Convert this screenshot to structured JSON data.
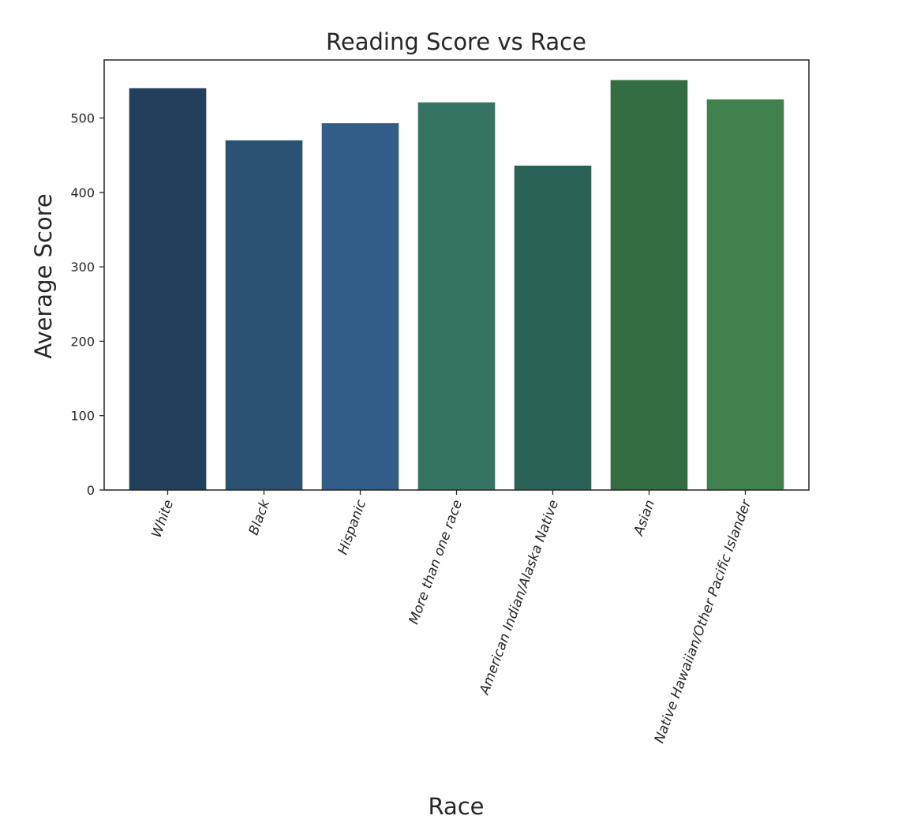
{
  "chart_data": {
    "type": "bar",
    "title": "Reading Score vs Race",
    "xlabel": "Race",
    "ylabel": "Average Score",
    "categories": [
      "White",
      "Black",
      "Hispanic",
      "More than one race",
      "American Indian/Alaska Native",
      "Asian",
      "Native Hawaiian/Other Pacific Islander"
    ],
    "values": [
      540,
      470,
      493,
      521,
      436,
      551,
      525
    ],
    "bar_colors": [
      "#22405c",
      "#2c5273",
      "#325d88",
      "#357463",
      "#2b6256",
      "#346d41",
      "#41814d"
    ],
    "ylim": [
      0,
      578
    ],
    "yticks": [
      0,
      100,
      200,
      300,
      400,
      500
    ],
    "ytick_labels": [
      "0",
      "100",
      "200",
      "300",
      "400",
      "500"
    ],
    "grid": false,
    "legend": "none",
    "xtick_rotation": -70
  }
}
